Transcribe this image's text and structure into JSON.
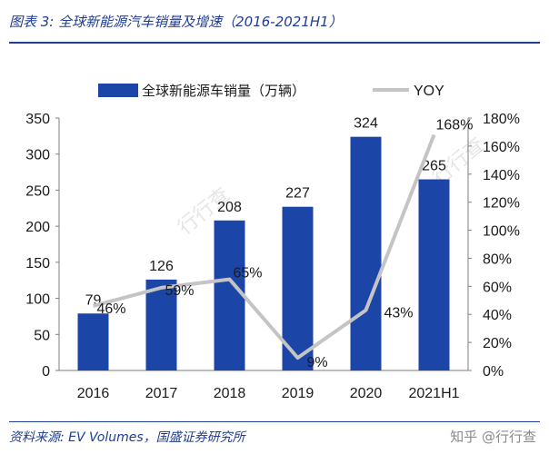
{
  "header": {
    "title": "图表 3:  全球新能源汽车销量及增速（2016-2021H1）"
  },
  "footer": {
    "source": "资料来源:  EV Volumes，国盛证券研究所",
    "watermark_text": "知乎 @行行查"
  },
  "watermarks": [
    "行行查",
    "行行查"
  ],
  "colors": {
    "bar": "#1c45a8",
    "line": "#c4c4c4",
    "text": "#1a1a1a",
    "title": "#1f3d93"
  },
  "chart_data": {
    "type": "bar",
    "title": "",
    "xlabel": "",
    "ylabel": "",
    "categories": [
      "2016",
      "2017",
      "2018",
      "2019",
      "2020",
      "2021H1"
    ],
    "series": [
      {
        "name": "全球新能源车销量（万辆）",
        "type": "bar",
        "axis": "left",
        "values": [
          79,
          126,
          208,
          227,
          324,
          265
        ],
        "labels": [
          "79",
          "126",
          "208",
          "227",
          "324",
          "265"
        ]
      },
      {
        "name": "YOY",
        "type": "line",
        "axis": "right",
        "values": [
          46,
          59,
          65,
          9,
          43,
          168
        ],
        "labels": [
          "46%",
          "59%",
          "65%",
          "9%",
          "43%",
          "168%"
        ]
      }
    ],
    "ylim": [
      0,
      350
    ],
    "y_ticks": [
      "0",
      "50",
      "100",
      "150",
      "200",
      "250",
      "300",
      "350"
    ],
    "y2lim": [
      0,
      180
    ],
    "y2_ticks": [
      "0%",
      "20%",
      "40%",
      "60%",
      "80%",
      "100%",
      "120%",
      "140%",
      "160%",
      "180%"
    ],
    "grid": false,
    "legend_position": "top"
  }
}
